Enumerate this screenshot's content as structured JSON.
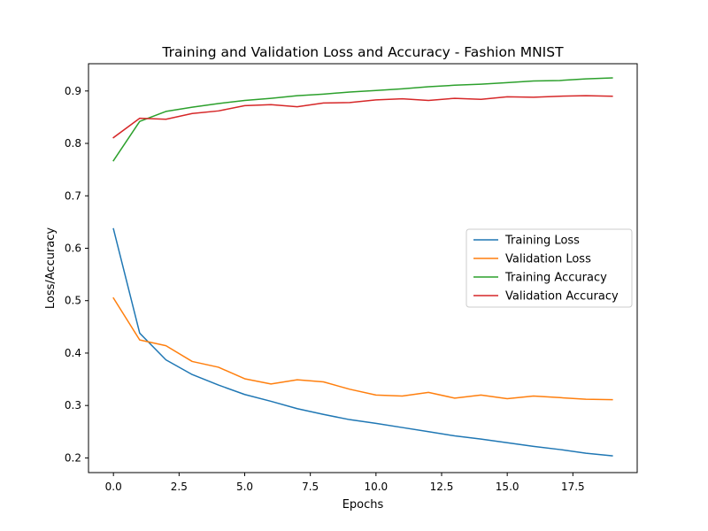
{
  "chart_data": {
    "type": "line",
    "title": "Training and Validation Loss and Accuracy - Fashion MNIST",
    "xlabel": "Epochs",
    "ylabel": "Loss/Accuracy",
    "xlim": [
      -0.95,
      19.95
    ],
    "ylim": [
      0.172,
      0.952
    ],
    "xticks": [
      0.0,
      2.5,
      5.0,
      7.5,
      10.0,
      12.5,
      15.0,
      17.5
    ],
    "xtick_labels": [
      "0.0",
      "2.5",
      "5.0",
      "7.5",
      "10.0",
      "12.5",
      "15.0",
      "17.5"
    ],
    "yticks": [
      0.2,
      0.3,
      0.4,
      0.5,
      0.6,
      0.7,
      0.8,
      0.9
    ],
    "ytick_labels": [
      "0.2",
      "0.3",
      "0.4",
      "0.5",
      "0.6",
      "0.7",
      "0.8",
      "0.9"
    ],
    "grid": false,
    "legend_position": "center-right",
    "x": [
      0,
      1,
      2,
      3,
      4,
      5,
      6,
      7,
      8,
      9,
      10,
      11,
      12,
      13,
      14,
      15,
      16,
      17,
      18,
      19
    ],
    "series": [
      {
        "name": "Training Loss",
        "color": "#1f77b4",
        "values": [
          0.637,
          0.438,
          0.387,
          0.359,
          0.339,
          0.321,
          0.308,
          0.294,
          0.283,
          0.273,
          0.266,
          0.258,
          0.25,
          0.242,
          0.236,
          0.229,
          0.222,
          0.216,
          0.209,
          0.204
        ]
      },
      {
        "name": "Validation Loss",
        "color": "#ff7f0e",
        "values": [
          0.505,
          0.425,
          0.414,
          0.384,
          0.373,
          0.351,
          0.341,
          0.349,
          0.345,
          0.331,
          0.32,
          0.318,
          0.325,
          0.314,
          0.32,
          0.313,
          0.318,
          0.315,
          0.312,
          0.311
        ]
      },
      {
        "name": "Training Accuracy",
        "color": "#2ca02c",
        "values": [
          0.767,
          0.842,
          0.861,
          0.869,
          0.876,
          0.882,
          0.886,
          0.891,
          0.894,
          0.898,
          0.901,
          0.904,
          0.908,
          0.911,
          0.913,
          0.916,
          0.919,
          0.92,
          0.923,
          0.925
        ]
      },
      {
        "name": "Validation Accuracy",
        "color": "#d62728",
        "values": [
          0.811,
          0.848,
          0.846,
          0.857,
          0.862,
          0.872,
          0.874,
          0.87,
          0.877,
          0.878,
          0.883,
          0.885,
          0.882,
          0.886,
          0.884,
          0.889,
          0.888,
          0.89,
          0.891,
          0.89
        ]
      }
    ]
  }
}
